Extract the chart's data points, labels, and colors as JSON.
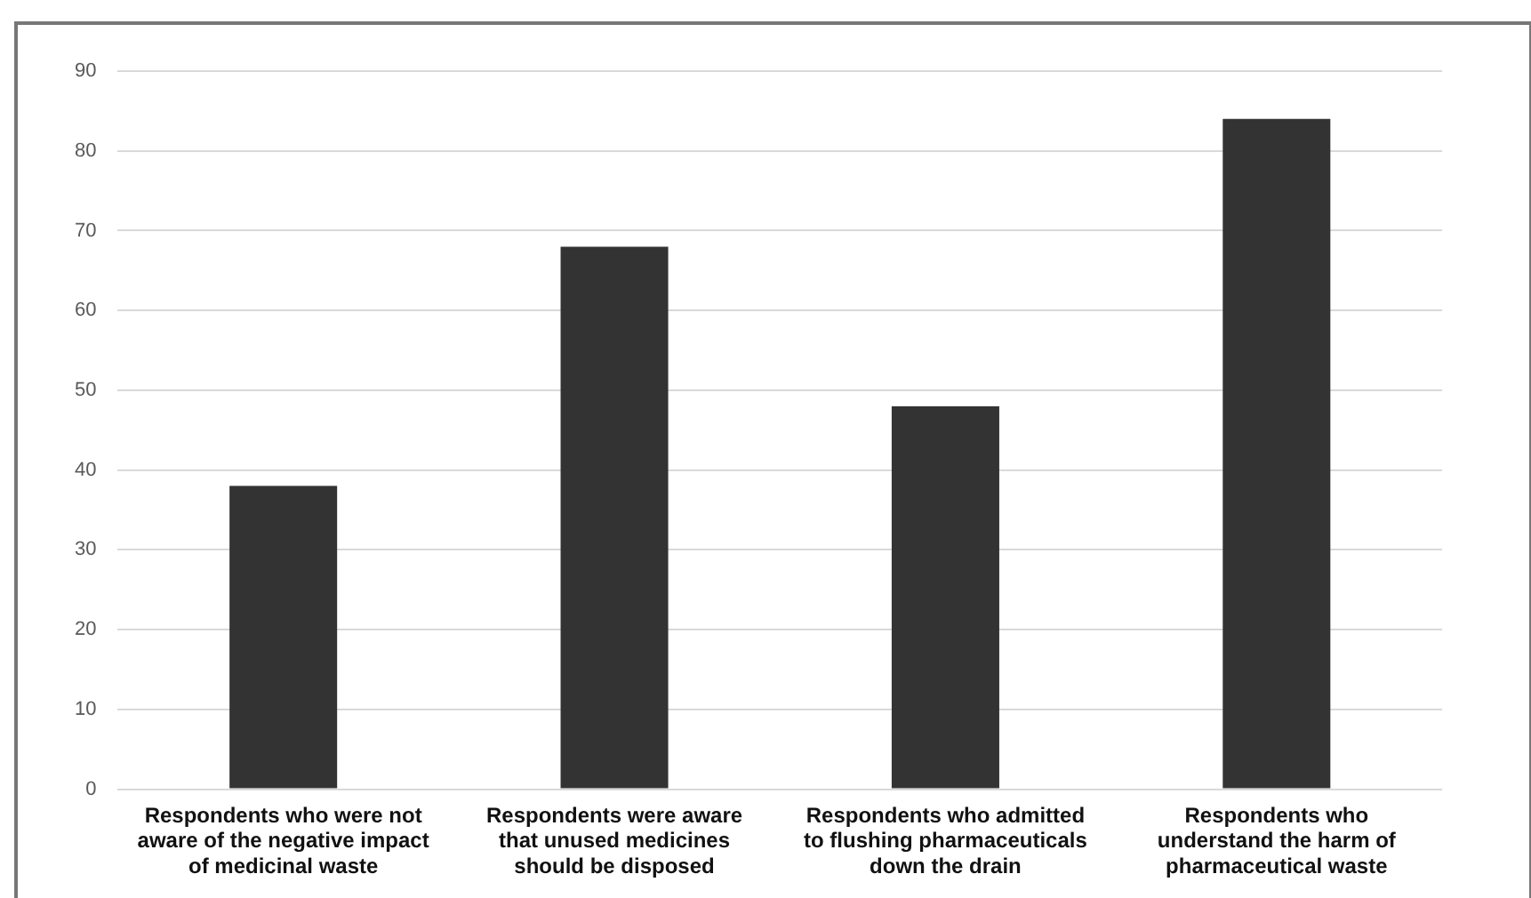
{
  "chart_data": {
    "type": "bar",
    "categories": [
      "Respondents who were not aware of the negative impact of medicinal waste",
      "Respondents were aware that unused medicines should be disposed",
      "Respondents who admitted to flushing pharmaceuticals down the drain",
      "Respondents who understand the harm of pharmaceutical waste"
    ],
    "values": [
      38,
      68,
      48,
      84
    ],
    "color": "#333333",
    "ylim": [
      0,
      90
    ],
    "yticks": [
      0,
      10,
      20,
      30,
      40,
      50,
      60,
      70,
      80,
      90
    ],
    "grid": "y"
  }
}
